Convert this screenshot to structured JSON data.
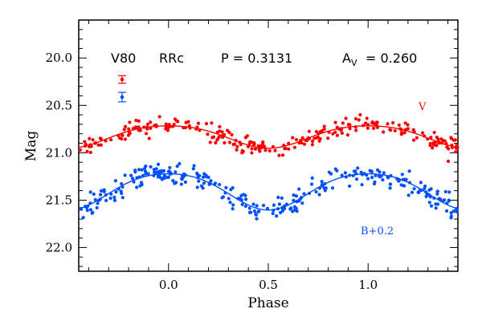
{
  "chart_data": {
    "type": "scatter",
    "xlabel": "Phase",
    "ylabel": "Mag",
    "xlim": [
      -0.45,
      1.45
    ],
    "ylim": [
      22.25,
      19.6
    ],
    "y_inverted": true,
    "x_ticks": [
      "0.0",
      "0.5",
      "1.0"
    ],
    "x_tick_values": [
      0.0,
      0.5,
      1.0
    ],
    "y_ticks": [
      "20.0",
      "20.5",
      "21.0",
      "21.5",
      "22.0"
    ],
    "y_tick_values": [
      20.0,
      20.5,
      21.0,
      21.5,
      22.0
    ],
    "header": {
      "star": "V80",
      "type": "RRc",
      "period_text": "P = 0.3131",
      "amp_label": "A",
      "amp_sub": "V",
      "amp_value": "= 0.260"
    },
    "series": [
      {
        "name": "V",
        "color": "#ff0000",
        "mean_mag": 20.82,
        "amplitude": 0.26,
        "max_phase": 0.0,
        "scatter": 0.045,
        "error_bar": 0.04,
        "n_points": 260,
        "seed": 7
      },
      {
        "name": "B+0.2",
        "color": "#0050ff",
        "mean_mag": 21.39,
        "amplitude": 0.42,
        "max_phase": 0.0,
        "scatter": 0.06,
        "error_bar": 0.05,
        "n_points": 300,
        "seed": 13
      }
    ]
  }
}
